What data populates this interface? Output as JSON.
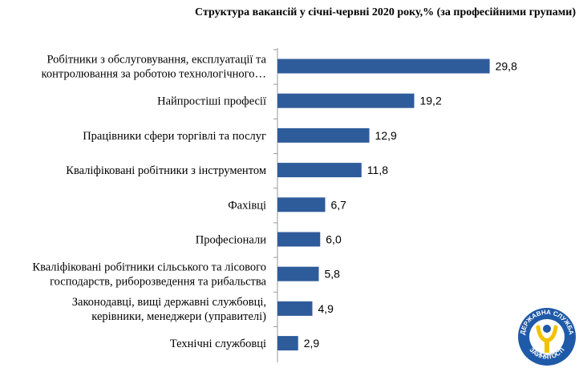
{
  "chart_data": {
    "type": "bar",
    "orientation": "horizontal",
    "title": "Структура  вакансій у січні-червні  2020 року,%   (за професійними групами)",
    "categories": [
      [
        "Робітники з обслуговування, експлуатації та",
        "контролювання за роботою технологічного…"
      ],
      [
        "Найпростіші професії"
      ],
      [
        "Працівники сфери торгівлі та послуг"
      ],
      [
        "Кваліфіковані робітники з інструментом"
      ],
      [
        "Фахівці"
      ],
      [
        "Професіонали"
      ],
      [
        "Кваліфіковані робітники сільського та лісового",
        "господарств, риборозведення та рибальства"
      ],
      [
        "Законодавці, вищі державні службовці,",
        "керівники, менеджери (управителі)"
      ],
      [
        "Технічні службовці"
      ]
    ],
    "values": [
      29.8,
      19.2,
      12.9,
      11.8,
      6.7,
      6.0,
      5.8,
      4.9,
      2.9
    ],
    "value_labels": [
      "29,8",
      "19,2",
      "12,9",
      "11,8",
      "6,7",
      "6,0",
      "5,8",
      "4,9",
      "2,9"
    ],
    "xlim": [
      0,
      32
    ],
    "grid": false,
    "legend": "none",
    "bar_color": "#2e5b9a",
    "axis_color": "#999999"
  },
  "logo": {
    "text_top": "ДЕРЖАВНА СЛУЖБА",
    "text_bottom": "ЗАЙНЯТОСТІ",
    "ring_color": "#1f5aa8",
    "symbol_color": "#f2c200"
  }
}
